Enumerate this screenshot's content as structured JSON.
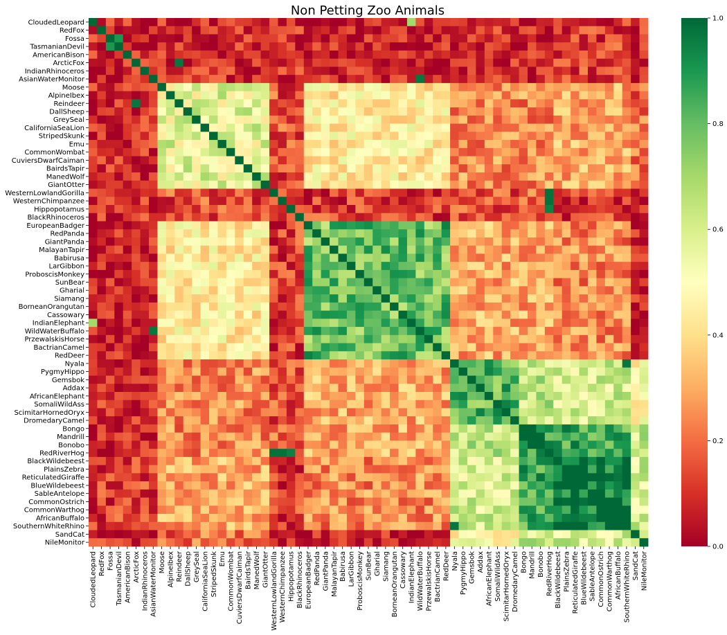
{
  "chart_data": {
    "type": "heatmap",
    "title": "Non Petting Zoo Animals",
    "xlabel": "",
    "ylabel": "",
    "labels": [
      "CloudedLeopard",
      "RedFox",
      "Fossa",
      "TasmanianDevil",
      "AmericanBison",
      "ArcticFox",
      "IndianRhinoceros",
      "AsianWaterMonitor",
      "Moose",
      "AlpineIbex",
      "Reindeer",
      "DallSheep",
      "GreySeal",
      "CaliforniaSeaLion",
      "StripedSkunk",
      "Emu",
      "CommonWombat",
      "CuviersDwarfCaiman",
      "BairdsTapir",
      "ManedWolf",
      "GiantOtter",
      "WesternLowlandGorilla",
      "WesternChimpanzee",
      "Hippopotamus",
      "BlackRhinoceros",
      "EuropeanBadger",
      "RedPanda",
      "GiantPanda",
      "MalayanTapir",
      "Babirusa",
      "LarGibbon",
      "ProboscisMonkey",
      "SunBear",
      "Gharial",
      "Siamang",
      "BorneanOrangutan",
      "Cassowary",
      "IndianElephant",
      "WildWaterBuffalo",
      "PrzewalskisHorse",
      "BactrianCamel",
      "RedDeer",
      "Nyala",
      "PygmyHippo",
      "Gemsbok",
      "Addax",
      "AfricanElephant",
      "SomaliWildAss",
      "ScimitarHornedOryx",
      "DromedaryCamel",
      "Bongo",
      "Mandrill",
      "Bonobo",
      "RedRiverHog",
      "BlackWildebeest",
      "PlainsZebra",
      "ReticulatedGiraffe",
      "BlueWildebeest",
      "SableAntelope",
      "CommonOstrich",
      "CommonWarthog",
      "AfricanBuffalo",
      "SouthernWhiteRhino",
      "SandCat",
      "NileMonitor"
    ],
    "x_tick_labels": [
      "CloudedLeopard",
      "RedFox",
      "Fossa",
      "TasmanianDevil",
      "AmericanBison",
      "ArcticFox",
      "IndianRhinoceros",
      "AsianWaterMonitor",
      "Moose",
      "AlpineIbex",
      "Reindeer",
      "DallSheep",
      "GreySeal",
      "CaliforniaSeaLion",
      "StripedSkunk",
      "Emu",
      "CommonWombat",
      "CuviersDwarfCaiman",
      "BairdsTapir",
      "ManedWolf",
      "GiantOtter",
      "WesternLowlandGorilla",
      "WesternChimpanzee",
      "Hippopotamus",
      "BlackRhinoceros",
      "EuropeanBadger",
      "RedPanda",
      "GiantPanda",
      "MalayanTapir",
      "Babirusa",
      "LarGibbon",
      "ProboscisMonkey",
      "SunBear",
      "Gharial",
      "Siamang",
      "BorneanOrangutan",
      "Cassowary",
      "IndianElephant",
      "WildWaterBuffalo",
      "PrzewalskisHorse",
      "BactrianCamel",
      "RedDeer",
      "Nyala",
      "PygmyHippo",
      "Gemsbok",
      "Addax",
      "AfricanElephant",
      "SomaliWildAss",
      "ScimitarHornedOryx",
      "DromedaryCamel",
      "Bongo",
      "Mandrill",
      "Bonobo",
      "RedRiverHog",
      "BlackWildebeest",
      "PlainsZebra",
      "ReticulatedGiraffe",
      "BlueWildebeest",
      "SableAntelope",
      "CommonOstrich",
      "CommonWarthog",
      "AfricanBuffalo",
      "SouthernWhiteRhino",
      "SandCat",
      "NileMonitor"
    ],
    "clusters": [
      {
        "members": [
          0,
          1,
          2,
          3,
          4,
          5,
          6,
          7
        ],
        "within": 0.05
      },
      {
        "members": [
          8,
          9,
          10,
          11,
          12,
          13,
          14,
          15,
          16,
          17,
          18,
          19,
          20
        ],
        "within": 0.55
      },
      {
        "members": [
          21,
          22,
          23,
          24
        ],
        "within": 0.12
      },
      {
        "members": [
          25,
          26,
          27,
          28,
          29,
          30,
          31,
          32,
          33,
          34,
          35,
          36,
          37,
          38,
          39,
          40,
          41
        ],
        "within": 0.78
      },
      {
        "members": [
          42,
          43,
          44,
          45,
          46,
          47,
          48,
          49
        ],
        "within": 0.8
      },
      {
        "members": [
          50,
          51,
          52,
          53
        ],
        "within": 0.88
      },
      {
        "members": [
          54,
          55,
          56,
          57,
          58,
          59,
          60,
          61,
          62
        ],
        "within": 0.98
      },
      {
        "members": [
          63,
          64
        ],
        "within": 0.5
      }
    ],
    "between": {
      "0-1": 0.08,
      "0-2": 0.1,
      "0-3": 0.06,
      "0-4": 0.08,
      "0-5": 0.06,
      "0-6": 0.12,
      "0-7": 0.08,
      "1-2": 0.15,
      "1-3": 0.45,
      "1-4": 0.25,
      "1-5": 0.25,
      "1-6": 0.3,
      "1-7": 0.2,
      "2-3": 0.12,
      "2-4": 0.15,
      "2-5": 0.18,
      "2-6": 0.12,
      "2-7": 0.05,
      "3-4": 0.3,
      "3-5": 0.3,
      "3-6": 0.25,
      "3-7": 0.05,
      "4-5": 0.65,
      "4-6": 0.6,
      "4-7": 0.5,
      "5-6": 0.85,
      "5-7": 0.62,
      "6-7": 0.6
    },
    "highlights": [
      {
        "r": 53,
        "c": 21,
        "v": 0.98
      },
      {
        "r": 53,
        "c": 22,
        "v": 0.98
      },
      {
        "r": 21,
        "c": 53,
        "v": 0.98
      },
      {
        "r": 22,
        "c": 53,
        "v": 0.98
      },
      {
        "r": 23,
        "c": 53,
        "v": 0.95
      },
      {
        "r": 53,
        "c": 23,
        "v": 0.95
      },
      {
        "r": 7,
        "c": 38,
        "v": 0.97
      },
      {
        "r": 38,
        "c": 7,
        "v": 0.97
      },
      {
        "r": 25,
        "c": 41,
        "v": 0.95
      },
      {
        "r": 41,
        "c": 25,
        "v": 0.95
      },
      {
        "r": 0,
        "c": 37,
        "v": 0.7
      },
      {
        "r": 37,
        "c": 0,
        "v": 0.7
      },
      {
        "r": 62,
        "c": 42,
        "v": 0.97
      },
      {
        "r": 42,
        "c": 62,
        "v": 0.97
      },
      {
        "r": 5,
        "c": 10,
        "v": 0.97
      },
      {
        "r": 10,
        "c": 5,
        "v": 0.97
      },
      {
        "r": 3,
        "c": 2,
        "v": 0.9
      },
      {
        "r": 2,
        "c": 3,
        "v": 0.9
      }
    ],
    "value_range": [
      0.0,
      1.0
    ],
    "colormap": "RdYlGn",
    "colorbar_ticks": [
      "0.0",
      "0.2",
      "0.4",
      "0.6",
      "0.8",
      "1.0"
    ]
  },
  "colors": {
    "low": "#a50026",
    "high": "#006837",
    "background": "#ffffff"
  }
}
